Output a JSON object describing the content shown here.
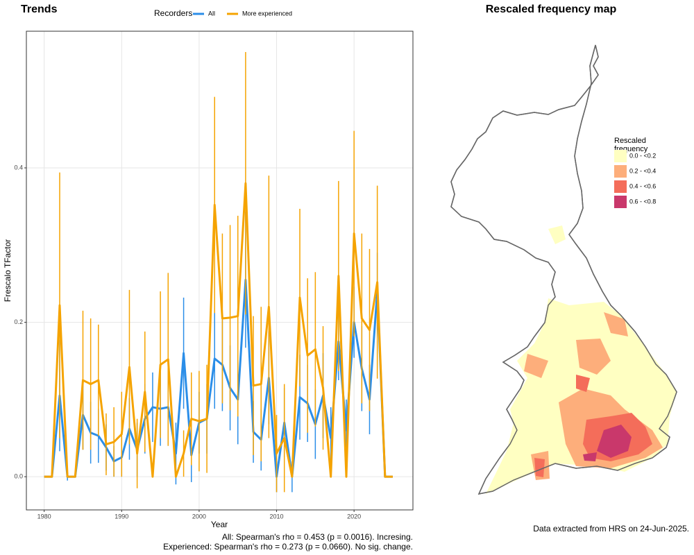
{
  "chart_data": [
    {
      "type": "line",
      "title": "Trends",
      "xlabel": "Year",
      "ylabel": "Frescalo TFactor",
      "legend_title": "Recorders",
      "x": [
        1980,
        1981,
        1982,
        1983,
        1984,
        1985,
        1986,
        1987,
        1988,
        1989,
        1990,
        1991,
        1992,
        1993,
        1994,
        1995,
        1996,
        1997,
        1998,
        1999,
        2000,
        2001,
        2002,
        2003,
        2004,
        2005,
        2006,
        2007,
        2008,
        2009,
        2010,
        2011,
        2012,
        2013,
        2014,
        2015,
        2016,
        2017,
        2018,
        2019,
        2020,
        2021,
        2022,
        2023,
        2024,
        2025
      ],
      "series": [
        {
          "name": "All",
          "color": "#2b8ee8",
          "values": [
            0,
            0,
            0.105,
            0,
            0,
            0.08,
            0.057,
            0.053,
            0.038,
            0.02,
            0.025,
            0.062,
            0.035,
            0.075,
            0.09,
            0.088,
            0.09,
            0.03,
            0.16,
            0.028,
            0.07,
            0.075,
            0.153,
            0.145,
            0.115,
            0.1,
            0.255,
            0.058,
            0.048,
            0.128,
            0,
            0.07,
            0,
            0.103,
            0.095,
            0.068,
            0.105,
            0.05,
            0.175,
            0.06,
            0.2,
            0.14,
            0.1,
            0.24,
            0,
            0
          ],
          "errors": [
            null,
            null,
            0.072,
            0.005,
            null,
            0.045,
            0.04,
            0.035,
            0.03,
            0.02,
            0.025,
            0.04,
            0.035,
            0.045,
            0.045,
            0.048,
            0.05,
            0.04,
            0.072,
            0.035,
            0.04,
            0.045,
            0.065,
            0.06,
            0.055,
            0.058,
            0.088,
            0.04,
            0.04,
            0.06,
            0.02,
            0.045,
            0.02,
            0.055,
            0.05,
            0.045,
            0.055,
            0.04,
            0.05,
            0.04,
            0.046,
            0.055,
            0.045,
            0.05,
            null,
            null
          ]
        },
        {
          "name": "More experienced",
          "color": "#f5a300",
          "values": [
            0,
            0,
            0.222,
            0,
            0,
            0.125,
            0.12,
            0.125,
            0.042,
            0.045,
            0.055,
            0.142,
            0.03,
            0.11,
            0,
            0.145,
            0.152,
            0,
            0.03,
            0.075,
            0.072,
            0.075,
            0.352,
            0.205,
            0.206,
            0.208,
            0.38,
            0.118,
            0.12,
            0.22,
            0.03,
            0.05,
            0,
            0.232,
            0.157,
            0.165,
            0.115,
            0,
            0.26,
            0,
            0.315,
            0.205,
            0.19,
            0.252,
            0,
            0
          ],
          "errors": [
            null,
            null,
            0.172,
            null,
            null,
            0.09,
            0.085,
            0.072,
            0.04,
            0.045,
            0.055,
            0.1,
            0.045,
            0.078,
            null,
            0.095,
            0.112,
            null,
            0.03,
            0.06,
            0.065,
            0.07,
            0.14,
            0.11,
            0.12,
            0.13,
            0.17,
            0.09,
            0.1,
            0.17,
            0.05,
            0.07,
            null,
            0.115,
            0.1,
            0.1,
            0.08,
            null,
            0.123,
            null,
            0.133,
            0.11,
            0.105,
            0.125,
            null,
            null
          ]
        }
      ],
      "xlim": [
        1977.7,
        2027.6
      ],
      "xticks": [
        1980,
        1990,
        2000,
        2010,
        2020
      ],
      "ylim": [
        -0.043,
        0.577
      ],
      "yticks": [
        {
          "value": 0,
          "label": "0.0"
        },
        0.2,
        0.4
      ],
      "grid": true,
      "legend_position": "top",
      "annotations": [
        "All: Spearman's rho = 0.453 (p = 0.0016). Incresing.",
        "Experienced: Spearman's rho = 0.273 (p = 0.0660). No sig. change."
      ]
    },
    {
      "type": "map",
      "title": "Rescaled frequency map",
      "legend_title": [
        "Rescaled",
        "frequency"
      ],
      "legend": [
        {
          "label": "0.0 - <0.2",
          "color": "#ffffc2"
        },
        {
          "label": "0.2 - <0.4",
          "color": "#fdae7b"
        },
        {
          "label": "0.4 - <0.6",
          "color": "#f46d5a"
        },
        {
          "label": "0.6 - <0.8",
          "color": "#c9386b"
        }
      ],
      "annotations": [
        "Data extracted from HRS on 24-Jun-2025."
      ]
    }
  ]
}
